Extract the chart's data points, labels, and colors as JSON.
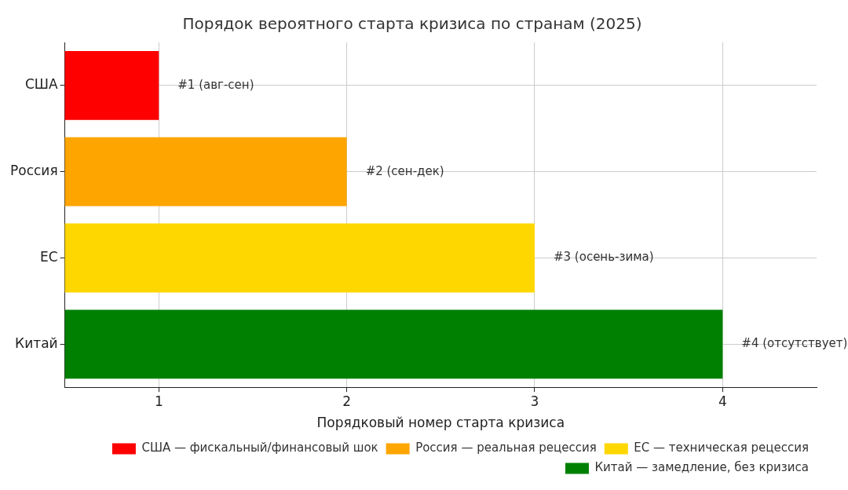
{
  "chart_data": {
    "type": "bar",
    "orientation": "horizontal",
    "title": "Порядок вероятного старта кризиса по странам (2025)",
    "xlabel": "Порядковый номер старта кризиса",
    "categories": [
      "США",
      "Россия",
      "ЕС",
      "Китай"
    ],
    "series": [
      {
        "name": "США — фискальный/финансовый шок",
        "color": "#ff0000",
        "values": [
          1,
          null,
          null,
          null
        ],
        "value_labels": [
          "#1 (авг-сен)",
          null,
          null,
          null
        ]
      },
      {
        "name": "Россия — реальная рецессия",
        "color": "#ffa500",
        "values": [
          null,
          2,
          null,
          null
        ],
        "value_labels": [
          null,
          "#2 (сен-дек)",
          null,
          null
        ]
      },
      {
        "name": "ЕС — техническая рецессия",
        "color": "#ffd700",
        "values": [
          null,
          null,
          3,
          null
        ],
        "value_labels": [
          null,
          null,
          "#3 (осень-зима)",
          null
        ]
      },
      {
        "name": "Китай — замедление, без кризиса",
        "color": "#008000",
        "values": [
          null,
          null,
          null,
          4
        ],
        "value_labels": [
          null,
          null,
          null,
          "#4 (отсутствует)"
        ]
      }
    ],
    "xlim": [
      0.5,
      4.5
    ],
    "xticks": [
      1,
      2,
      3,
      4
    ],
    "grid": true,
    "legend": "bottom right"
  }
}
